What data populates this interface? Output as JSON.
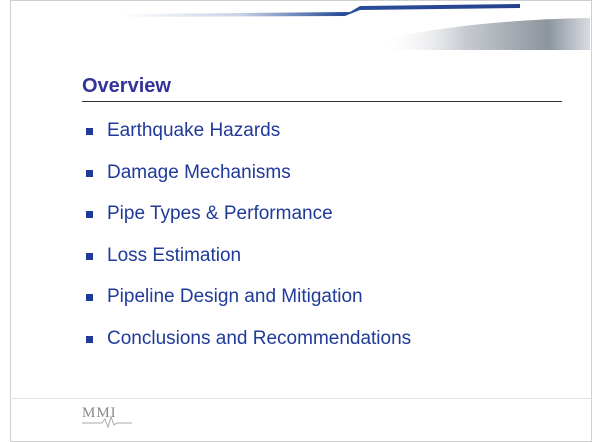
{
  "header": {
    "title": "Overview"
  },
  "items": [
    "Earthquake Hazards",
    "Damage Mechanisms",
    "Pipe Types & Performance",
    "Loss Estimation",
    "Pipeline Design and Mitigation",
    "Conclusions and Recommendations"
  ],
  "footer": {
    "logo": "MMI"
  }
}
